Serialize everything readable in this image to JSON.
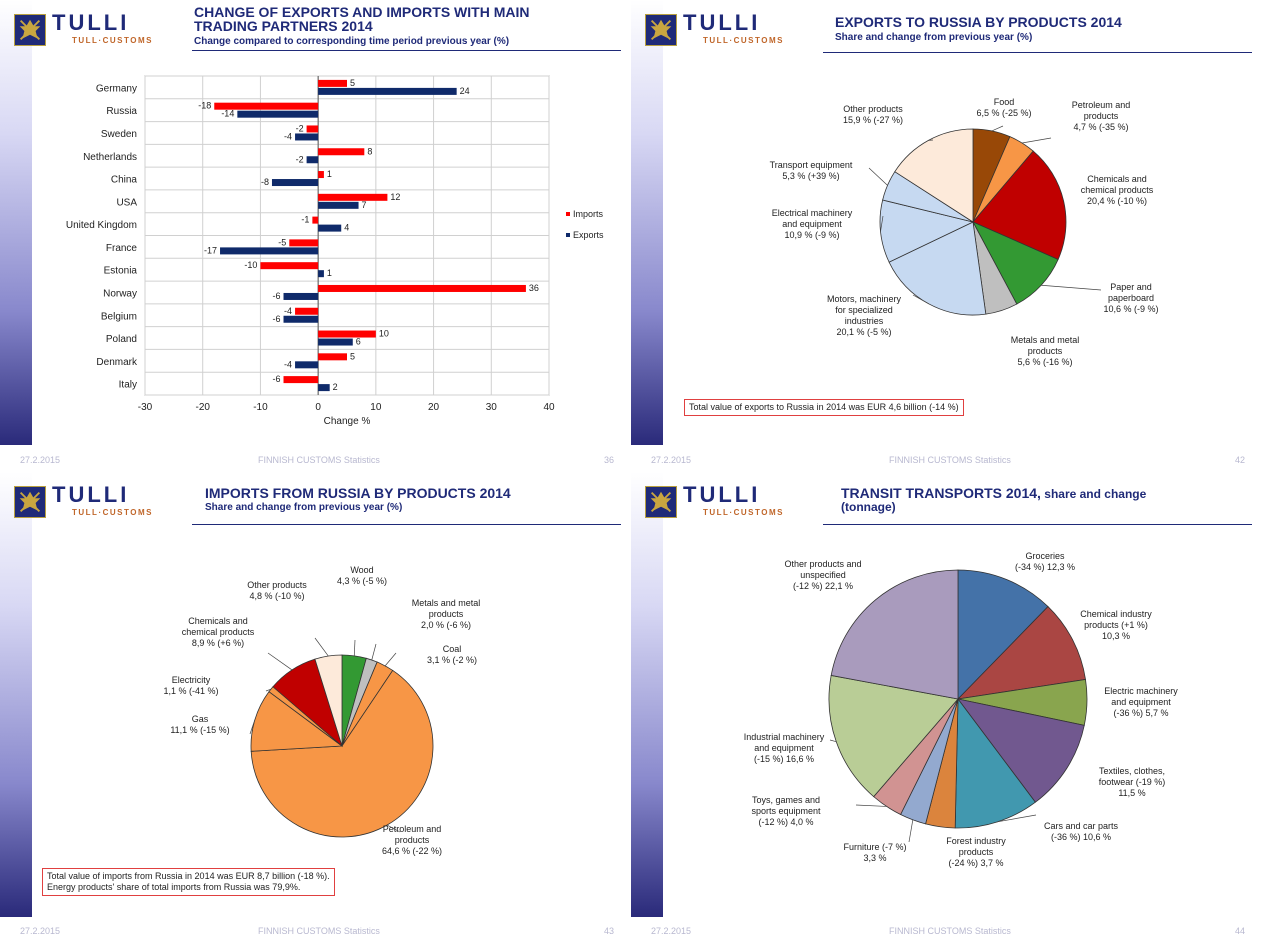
{
  "brand": {
    "name": "TULLI",
    "subname": "TULL·CUSTOMS"
  },
  "slides": [
    {
      "title": "CHANGE OF EXPORTS AND IMPORTS WITH MAIN TRADING PARTNERS 2014",
      "title_line1": "CHANGE OF EXPORTS AND IMPORTS WITH MAIN",
      "title_line2": "TRADING PARTNERS 2014",
      "subtitle": "Change compared to corresponding time period previous year (%)",
      "footer_date": "27.2.2015",
      "footer_center": "FINNISH CUSTOMS Statistics",
      "footer_page": "36"
    },
    {
      "title": "EXPORTS TO RUSSIA BY PRODUCTS 2014",
      "subtitle": "Share and change from previous year (%)",
      "note": "Total value of exports to Russia in 2014 was EUR 4,6 billion (-14 %)",
      "footer_date": "27.2.2015",
      "footer_center": "FINNISH CUSTOMS Statistics",
      "footer_page": "42"
    },
    {
      "title": "IMPORTS FROM RUSSIA BY PRODUCTS 2014",
      "subtitle": "Share and change from previous year (%)",
      "note_line1": "Total value of imports from Russia in 2014 was EUR 8,7 billion (-18 %).",
      "note_line2": "Energy products' share of total imports from Russia was 79,9%.",
      "footer_date": "27.2.2015",
      "footer_center": "FINNISH CUSTOMS Statistics",
      "footer_page": "43"
    },
    {
      "title_line1": "TRANSIT TRANSPORTS 2014,",
      "title_line1b": " share and change",
      "title_line2": "(tonnage)",
      "footer_date": "27.2.2015",
      "footer_center": "FINNISH CUSTOMS Statistics",
      "footer_page": "44"
    }
  ],
  "chart_data": [
    {
      "type": "bar",
      "orientation": "horizontal",
      "categories": [
        "Germany",
        "Russia",
        "Sweden",
        "Netherlands",
        "China",
        "USA",
        "United Kingdom",
        "France",
        "Estonia",
        "Norway",
        "Belgium",
        "Poland",
        "Denmark",
        "Italy"
      ],
      "series": [
        {
          "name": "Imports",
          "color": "#ff0000",
          "values": [
            5,
            -18,
            -2,
            8,
            1,
            12,
            -1,
            -5,
            -10,
            36,
            -4,
            10,
            5,
            -6
          ]
        },
        {
          "name": "Exports",
          "color": "#0f2a6a",
          "values": [
            24,
            -14,
            -4,
            -2,
            -8,
            7,
            4,
            -17,
            1,
            -6,
            -6,
            6,
            -4,
            2
          ]
        }
      ],
      "xlabel": "Change %",
      "xlim": [
        -30,
        40
      ],
      "xticks": [
        -30,
        -20,
        -10,
        0,
        10,
        20,
        30,
        40
      ],
      "legend": "right",
      "grid": true
    },
    {
      "type": "pie",
      "slices": [
        {
          "label_lines": [
            "Food",
            "6,5 % (-25 %)"
          ],
          "value": 6.5,
          "color": "#984807"
        },
        {
          "label_lines": [
            "Petroleum and",
            "products",
            "4,7 % (-35 %)"
          ],
          "value": 4.7,
          "color": "#f79646"
        },
        {
          "label_lines": [
            "Chemicals and",
            "chemical products",
            "20,4 % (-10 %)"
          ],
          "value": 20.4,
          "color": "#c00000"
        },
        {
          "label_lines": [
            "Paper and",
            "paperboard",
            "10,6 % (-9 %)"
          ],
          "value": 10.6,
          "color": "#339933"
        },
        {
          "label_lines": [
            "Metals and metal",
            "products",
            "5,6 % (-16 %)"
          ],
          "value": 5.6,
          "color": "#bfbfbf"
        },
        {
          "label_lines": [
            "Motors, machinery",
            "for specialized",
            "industries",
            "20,1 % (-5 %)"
          ],
          "value": 20.1,
          "color": "#c6d9f1"
        },
        {
          "label_lines": [
            "Electrical machinery",
            "and equipment",
            "10,9 % (-9 %)"
          ],
          "value": 10.9,
          "color": "#c6d9f1"
        },
        {
          "label_lines": [
            "Transport equipment",
            "5,3 % (+39 %)"
          ],
          "value": 5.3,
          "color": "#c6d9f1"
        },
        {
          "label_lines": [
            "Other products",
            "15,9 % (-27 %)"
          ],
          "value": 15.9,
          "color": "#fdeada"
        }
      ]
    },
    {
      "type": "pie",
      "slices": [
        {
          "label_lines": [
            "Wood",
            "4,3 % (-5 %)"
          ],
          "value": 4.3,
          "color": "#339933"
        },
        {
          "label_lines": [
            "Metals and metal",
            "products",
            "2,0 % (-6 %)"
          ],
          "value": 2.0,
          "color": "#bfbfbf"
        },
        {
          "label_lines": [
            "Coal",
            "3,1 % (-2 %)"
          ],
          "value": 3.1,
          "color": "#f79646"
        },
        {
          "label_lines": [
            "Petroleum and",
            "products",
            "64,6 % (-22 %)"
          ],
          "value": 64.6,
          "color": "#f79646"
        },
        {
          "label_lines": [
            "Gas",
            "11,1 % (-15 %)"
          ],
          "value": 11.1,
          "color": "#f79646"
        },
        {
          "label_lines": [
            "Electricity",
            "1,1 % (-41 %)"
          ],
          "value": 1.1,
          "color": "#f79646"
        },
        {
          "label_lines": [
            "Chemicals and",
            "chemical products",
            "8,9 % (+6 %)"
          ],
          "value": 8.9,
          "color": "#c00000"
        },
        {
          "label_lines": [
            "Other products",
            "4,8 % (-10 %)"
          ],
          "value": 4.8,
          "color": "#fdeada"
        }
      ]
    },
    {
      "type": "pie",
      "slices": [
        {
          "label_lines": [
            "Groceries",
            "(-34 %) 12,3 %"
          ],
          "value": 12.3,
          "color": "#4472a8"
        },
        {
          "label_lines": [
            "Chemical industry",
            "products (+1 %)",
            "10,3 %"
          ],
          "value": 10.3,
          "color": "#aa4643"
        },
        {
          "label_lines": [
            "Electric machinery",
            "and equipment",
            "(-36 %) 5,7 %"
          ],
          "value": 5.7,
          "color": "#89a54e"
        },
        {
          "label_lines": [
            "Textiles, clothes,",
            "footwear (-19 %)",
            "11,5 %"
          ],
          "value": 11.5,
          "color": "#71588f"
        },
        {
          "label_lines": [
            "Cars and car parts",
            "(-36 %) 10,6 %"
          ],
          "value": 10.6,
          "color": "#4198af"
        },
        {
          "label_lines": [
            "Forest industry",
            "products",
            "(-24 %) 3,7 %"
          ],
          "value": 3.7,
          "color": "#db843d"
        },
        {
          "label_lines": [
            "Furniture (-7 %)",
            "3,3 %"
          ],
          "value": 3.3,
          "color": "#93a9cf"
        },
        {
          "label_lines": [
            "Toys, games and",
            "sports equipment",
            "(-12 %) 4,0 %"
          ],
          "value": 4.0,
          "color": "#d19392"
        },
        {
          "label_lines": [
            "Industrial machinery",
            "and equipment",
            "(-15 %) 16,6 %"
          ],
          "value": 16.6,
          "color": "#b9cd96"
        },
        {
          "label_lines": [
            "Other products and",
            "unspecified",
            "(-12 %) 22,1 %"
          ],
          "value": 22.1,
          "color": "#a99bbd"
        }
      ]
    }
  ]
}
